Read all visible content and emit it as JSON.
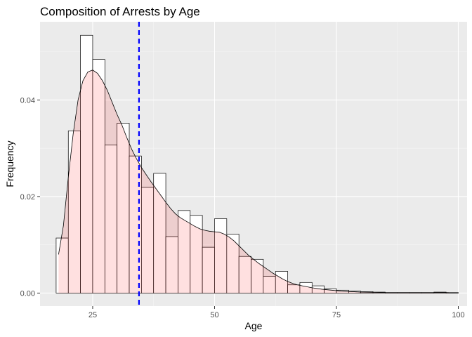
{
  "chart_data": {
    "type": "histogram",
    "title": "Composition of Arrests by Age",
    "xlabel": "Age",
    "ylabel": "Frequency",
    "xlim": [
      14.2,
      101.8
    ],
    "ylim": [
      -0.0027,
      0.0562
    ],
    "x_ticks": [
      25,
      50,
      75,
      100
    ],
    "x_tick_labels": [
      "25",
      "50",
      "75",
      "100"
    ],
    "y_ticks": [
      0,
      0.02,
      0.04
    ],
    "y_tick_labels": [
      "0.00",
      "0.02",
      "0.04"
    ],
    "grid": true,
    "legend": "none",
    "bins": [
      {
        "x0": 17.5,
        "x1": 20.0,
        "density": 0.0114
      },
      {
        "x0": 20.0,
        "x1": 22.5,
        "density": 0.0336
      },
      {
        "x0": 22.5,
        "x1": 25.0,
        "density": 0.0534
      },
      {
        "x0": 25.0,
        "x1": 27.5,
        "density": 0.0484
      },
      {
        "x0": 27.5,
        "x1": 30.0,
        "density": 0.0307
      },
      {
        "x0": 30.0,
        "x1": 32.5,
        "density": 0.0352
      },
      {
        "x0": 32.5,
        "x1": 35.0,
        "density": 0.0284
      },
      {
        "x0": 35.0,
        "x1": 37.5,
        "density": 0.0219
      },
      {
        "x0": 37.5,
        "x1": 40.0,
        "density": 0.0248
      },
      {
        "x0": 40.0,
        "x1": 42.5,
        "density": 0.0117
      },
      {
        "x0": 42.5,
        "x1": 45.0,
        "density": 0.0171
      },
      {
        "x0": 45.0,
        "x1": 47.5,
        "density": 0.0161
      },
      {
        "x0": 47.5,
        "x1": 50.0,
        "density": 0.0095
      },
      {
        "x0": 50.0,
        "x1": 52.5,
        "density": 0.0154
      },
      {
        "x0": 52.5,
        "x1": 55.0,
        "density": 0.0122
      },
      {
        "x0": 55.0,
        "x1": 57.5,
        "density": 0.0076
      },
      {
        "x0": 57.5,
        "x1": 60.0,
        "density": 0.007
      },
      {
        "x0": 60.0,
        "x1": 62.5,
        "density": 0.0035
      },
      {
        "x0": 62.5,
        "x1": 65.0,
        "density": 0.0045
      },
      {
        "x0": 65.0,
        "x1": 67.5,
        "density": 0.0017
      },
      {
        "x0": 67.5,
        "x1": 70.0,
        "density": 0.0022
      },
      {
        "x0": 70.0,
        "x1": 72.5,
        "density": 0.0015
      },
      {
        "x0": 72.5,
        "x1": 75.0,
        "density": 0.0009
      },
      {
        "x0": 75.0,
        "x1": 77.5,
        "density": 0.0006
      },
      {
        "x0": 77.5,
        "x1": 80.0,
        "density": 0.0004
      },
      {
        "x0": 80.0,
        "x1": 82.5,
        "density": 0.0003
      },
      {
        "x0": 82.5,
        "x1": 85.0,
        "density": 0.0002
      },
      {
        "x0": 85.0,
        "x1": 87.5,
        "density": 0.0001
      },
      {
        "x0": 87.5,
        "x1": 90.0,
        "density": 0.0001
      },
      {
        "x0": 90.0,
        "x1": 92.5,
        "density": 0.0001
      },
      {
        "x0": 92.5,
        "x1": 95.0,
        "density": 0.0001
      },
      {
        "x0": 95.0,
        "x1": 97.5,
        "density": 0.0002
      },
      {
        "x0": 97.5,
        "x1": 100.0,
        "density": 0.0001
      }
    ],
    "density_curve": [
      [
        18.0,
        0.008
      ],
      [
        18.5,
        0.011
      ],
      [
        19.0,
        0.014
      ],
      [
        20.0,
        0.024
      ],
      [
        21.0,
        0.033
      ],
      [
        22.0,
        0.04
      ],
      [
        23.0,
        0.044
      ],
      [
        24.0,
        0.0458
      ],
      [
        25.0,
        0.0462
      ],
      [
        26.0,
        0.0455
      ],
      [
        27.0,
        0.044
      ],
      [
        28.0,
        0.042
      ],
      [
        29.0,
        0.0395
      ],
      [
        30.0,
        0.037
      ],
      [
        31.0,
        0.0348
      ],
      [
        32.0,
        0.0322
      ],
      [
        33.0,
        0.0298
      ],
      [
        34.0,
        0.0278
      ],
      [
        35.0,
        0.026
      ],
      [
        36.0,
        0.0245
      ],
      [
        37.0,
        0.023
      ],
      [
        38.0,
        0.0216
      ],
      [
        39.0,
        0.0202
      ],
      [
        40.0,
        0.0188
      ],
      [
        41.0,
        0.0175
      ],
      [
        42.0,
        0.0164
      ],
      [
        43.0,
        0.0156
      ],
      [
        44.0,
        0.015
      ],
      [
        45.0,
        0.0144
      ],
      [
        46.0,
        0.0138
      ],
      [
        47.0,
        0.0133
      ],
      [
        48.0,
        0.013
      ],
      [
        49.0,
        0.0128
      ],
      [
        50.0,
        0.0127
      ],
      [
        51.0,
        0.0126
      ],
      [
        52.0,
        0.0122
      ],
      [
        53.0,
        0.0116
      ],
      [
        54.0,
        0.0108
      ],
      [
        55.0,
        0.0098
      ],
      [
        56.0,
        0.0088
      ],
      [
        57.0,
        0.0078
      ],
      [
        58.0,
        0.007
      ],
      [
        59.0,
        0.0062
      ],
      [
        60.0,
        0.0055
      ],
      [
        61.0,
        0.0048
      ],
      [
        62.0,
        0.0041
      ],
      [
        63.0,
        0.0035
      ],
      [
        64.0,
        0.0029
      ],
      [
        65.0,
        0.0024
      ],
      [
        66.0,
        0.002
      ],
      [
        67.0,
        0.0017
      ],
      [
        68.0,
        0.0015
      ],
      [
        69.0,
        0.0013
      ],
      [
        70.0,
        0.0011
      ],
      [
        72.0,
        0.0008
      ],
      [
        74.0,
        0.0006
      ],
      [
        76.0,
        0.0004
      ],
      [
        78.0,
        0.0003
      ],
      [
        80.0,
        0.0002
      ],
      [
        85.0,
        0.0001
      ],
      [
        90.0,
        0.0001
      ],
      [
        95.0,
        0.0001
      ],
      [
        98.0,
        0.0001
      ]
    ],
    "mean_line": {
      "x": 34.5,
      "color": "#0000ff",
      "style": "dashed"
    },
    "colors": {
      "panel_background": "#ebebeb",
      "grid_major": "#ffffff",
      "grid_minor": "#f5f5f5",
      "bar_fill": "#ffffff",
      "bar_stroke": "#000000",
      "density_fill": "#ff0000",
      "density_fill_opacity": 0.12,
      "density_stroke": "#000000",
      "tick_label": "#4d4d4d"
    }
  }
}
